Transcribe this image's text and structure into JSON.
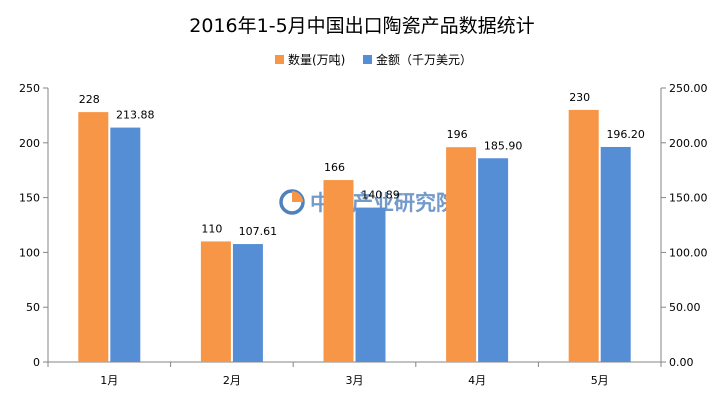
{
  "chart_data": {
    "type": "bar",
    "title": "2016年1-5月中国出口陶瓷产品数据统计",
    "categories": [
      "1月",
      "2月",
      "3月",
      "4月",
      "5月"
    ],
    "series": [
      {
        "name": "数量(万吨)",
        "color": "#F79646",
        "axis": "left",
        "values": [
          228,
          110,
          166,
          196,
          230
        ],
        "labels": [
          "228",
          "110",
          "166",
          "196",
          "230"
        ]
      },
      {
        "name": "金额（千万美元）",
        "color": "#558ED5",
        "axis": "right",
        "values": [
          213.88,
          107.61,
          140.89,
          185.9,
          196.2
        ],
        "labels": [
          "213.88",
          "107.61",
          "140.89",
          "185.90",
          "196.20"
        ]
      }
    ],
    "left_axis": {
      "ylim": [
        0,
        250
      ],
      "ticks": [
        0,
        50,
        100,
        150,
        200,
        250
      ],
      "tick_labels": [
        "0",
        "50",
        "100",
        "150",
        "200",
        "250"
      ]
    },
    "right_axis": {
      "ylim": [
        0,
        250
      ],
      "ticks": [
        0,
        50,
        100,
        150,
        200,
        250
      ],
      "tick_labels": [
        "0.00",
        "50.00",
        "100.00",
        "150.00",
        "200.00",
        "250.00"
      ]
    },
    "legend_position": "top-center",
    "grid": false
  },
  "watermark": {
    "text": "中商产业研究院",
    "color": "#4F81BD"
  },
  "colors": {
    "axis": "#868686",
    "text": "#000000"
  }
}
